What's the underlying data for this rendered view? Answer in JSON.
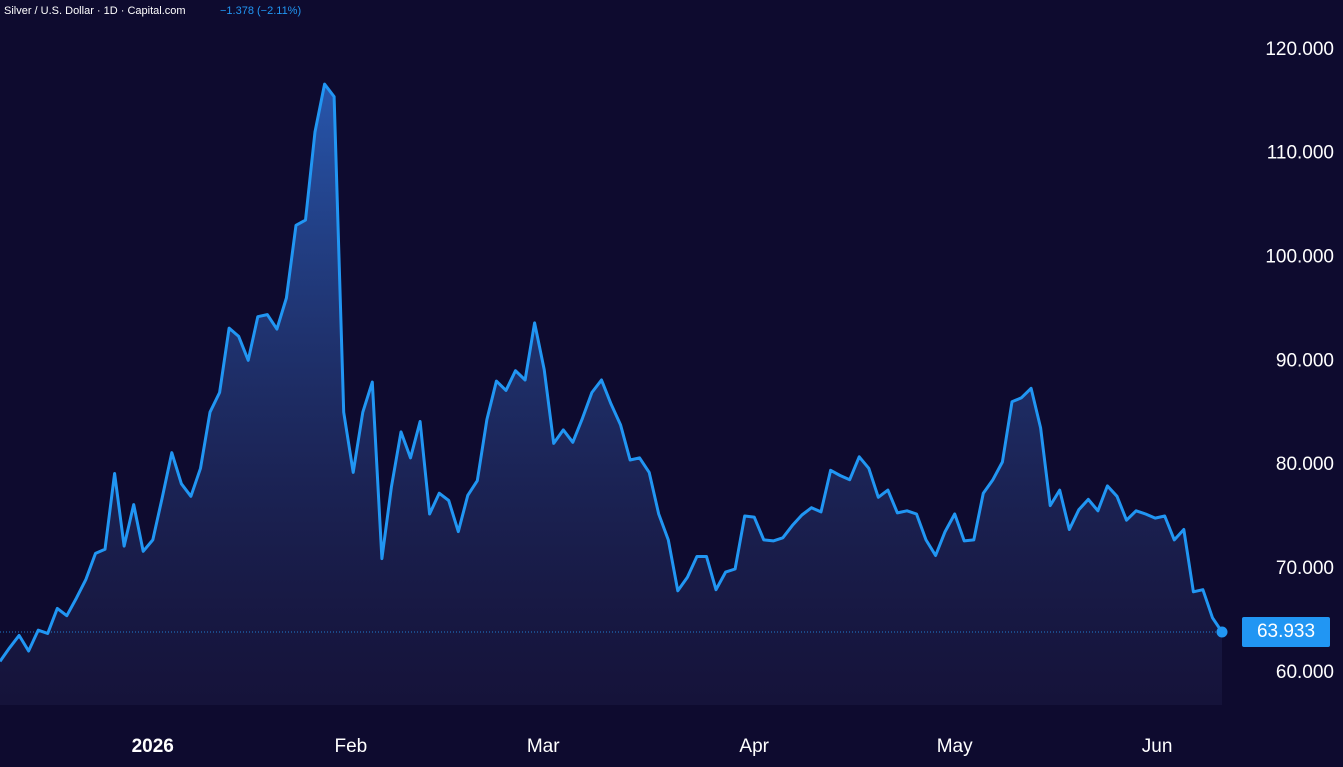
{
  "chart_data": {
    "type": "line",
    "title": "Silver / U.S. Dollar · 1D · Capital.com",
    "subtitle": "−1.378 (−2.11%)",
    "color": "#2196f3",
    "x": [
      0,
      1,
      2,
      3,
      4,
      5,
      6,
      7,
      8,
      9,
      10,
      11,
      12,
      13,
      14,
      15,
      16,
      17,
      18,
      19,
      20,
      21,
      22,
      23,
      24,
      25,
      26,
      27,
      28,
      29,
      30,
      31,
      32,
      33,
      34,
      35,
      36,
      37,
      38,
      39,
      40,
      41,
      42,
      43,
      44,
      45,
      46,
      47,
      48,
      49,
      50,
      51,
      52,
      53,
      54,
      55,
      56,
      57,
      58,
      59,
      60,
      61,
      62,
      63,
      64,
      65,
      66,
      67,
      68,
      69,
      70,
      71,
      72,
      73,
      74,
      75,
      76,
      77,
      78,
      79,
      80,
      81,
      82,
      83,
      84,
      85,
      86,
      87,
      88,
      89,
      90,
      91,
      92,
      93,
      94,
      95,
      96,
      97,
      98,
      99,
      100,
      101,
      102,
      103,
      104,
      105,
      106,
      107,
      108,
      109,
      110,
      111,
      112,
      113,
      114,
      115,
      116,
      117,
      118,
      119,
      120,
      121,
      122,
      123,
      124,
      125,
      126,
      127,
      128
    ],
    "values": [
      61.1,
      62.4,
      63.6,
      62.1,
      64.1,
      63.8,
      66.2,
      65.5,
      67.2,
      69.0,
      71.5,
      71.9,
      79.2,
      72.2,
      76.2,
      71.7,
      72.8,
      76.9,
      81.2,
      78.2,
      77.0,
      79.7,
      85.1,
      87.0,
      93.2,
      92.4,
      90.1,
      94.3,
      94.5,
      93.1,
      96.1,
      103.1,
      103.6,
      112.1,
      116.7,
      115.5,
      85.1,
      79.3,
      85.1,
      88.0,
      71.0,
      77.9,
      83.2,
      80.7,
      84.2,
      75.3,
      77.3,
      76.6,
      73.6,
      77.1,
      78.5,
      84.4,
      88.1,
      87.2,
      89.1,
      88.2,
      93.7,
      89.2,
      82.1,
      83.4,
      82.2,
      84.5,
      87.0,
      88.2,
      85.9,
      83.9,
      80.5,
      80.7,
      79.3,
      75.3,
      72.8,
      67.9,
      69.2,
      71.2,
      71.2,
      68.0,
      69.7,
      70.0,
      75.1,
      75.0,
      72.8,
      72.7,
      73.0,
      74.2,
      75.2,
      75.9,
      75.5,
      79.5,
      79.0,
      78.6,
      80.8,
      79.7,
      76.9,
      77.6,
      75.4,
      75.6,
      75.3,
      72.8,
      71.3,
      73.6,
      75.3,
      72.7,
      72.8,
      77.3,
      78.6,
      80.3,
      86.1,
      86.5,
      87.4,
      83.6,
      76.1,
      77.6,
      73.8,
      75.7,
      76.7,
      75.6,
      78.0,
      77.0,
      74.7,
      75.6,
      75.3,
      74.9,
      75.1,
      72.8,
      73.8,
      67.8,
      68.0,
      65.3,
      63.933
    ],
    "xlim": [
      0,
      128
    ],
    "xticks": [
      {
        "value": 16,
        "label": "2026"
      },
      {
        "value": 36.75,
        "label": "Feb"
      },
      {
        "value": 56.9,
        "label": "Mar"
      },
      {
        "value": 79,
        "label": "Apr"
      },
      {
        "value": 100,
        "label": "May"
      },
      {
        "value": 121.2,
        "label": "Jun"
      }
    ],
    "ylim": [
      56.9,
      124.8
    ],
    "yticks": [
      {
        "value": 60,
        "label": "60.000"
      },
      {
        "value": 70,
        "label": "70.000"
      },
      {
        "value": 80,
        "label": "80.000"
      },
      {
        "value": 90,
        "label": "90.000"
      },
      {
        "value": 100,
        "label": "100.000"
      },
      {
        "value": 110,
        "label": "110.000"
      },
      {
        "value": 120,
        "label": "120.000"
      }
    ]
  }
}
